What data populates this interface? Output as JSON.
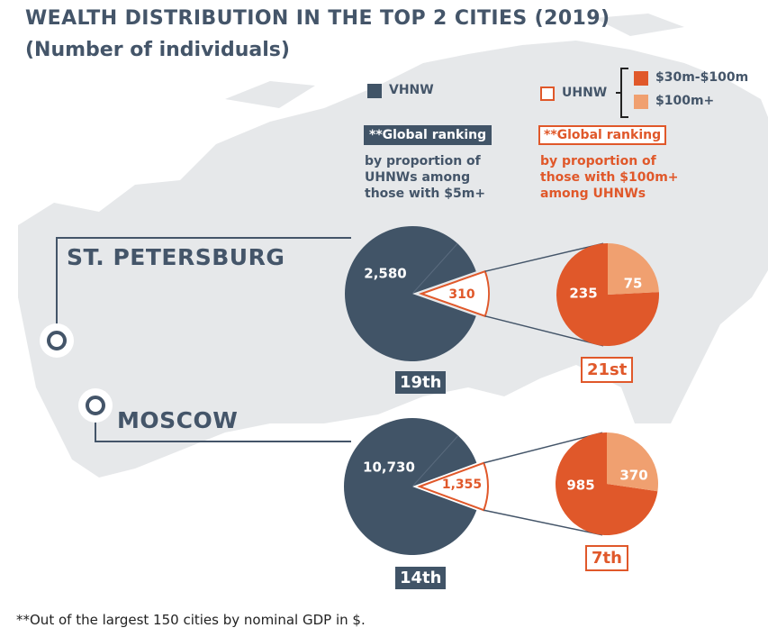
{
  "title": {
    "line1": "WEALTH DISTRIBUTION IN THE TOP 2 CITIES (2019)",
    "line2": "(Number of individuals)"
  },
  "legend": {
    "vhnw_label": "VHNW",
    "uhnw_label": "UHNW",
    "sub_30_100": "$30m-$100m",
    "sub_100plus": "$100m+"
  },
  "notes": {
    "vhnw_badge": "**Global ranking",
    "vhnw_text": [
      "by proportion of",
      "UHNWs among",
      "those with $5m+"
    ],
    "uhnw_badge": "**Global ranking",
    "uhnw_text": [
      "by proportion of",
      "those with $100m+",
      "among UHNWs"
    ]
  },
  "colors": {
    "vhnw": "#415467",
    "uhnw_outline": "#e0582a",
    "sub_30_100": "#e0582a",
    "sub_100plus": "#f0a070",
    "map": "#e4e6e8",
    "text_dark": "#445569"
  },
  "cities": {
    "st_petersburg": {
      "name": "ST. PETERSBURG",
      "rank_vhnw": "19th",
      "rank_uhnw": "21st"
    },
    "moscow": {
      "name": "MOSCOW",
      "rank_vhnw": "14th",
      "rank_uhnw": "7th"
    }
  },
  "chart_data": [
    {
      "type": "pie",
      "title": "ST. PETERSBURG",
      "categories": [
        "VHNW",
        "UHNW"
      ],
      "values": [
        2580,
        310
      ],
      "labels": [
        "2,580",
        "310"
      ]
    },
    {
      "type": "pie",
      "title": "ST. PETERSBURG",
      "categories": [
        "$30m-$100m",
        "$100m+"
      ],
      "values": [
        235,
        75
      ],
      "labels": [
        "235",
        "75"
      ]
    },
    {
      "type": "pie",
      "title": "MOSCOW",
      "categories": [
        "VHNW",
        "UHNW"
      ],
      "values": [
        10730,
        1355
      ],
      "labels": [
        "10,730",
        "1,355"
      ]
    },
    {
      "type": "pie",
      "title": "MOSCOW",
      "categories": [
        "$30m-$100m",
        "$100m+"
      ],
      "values": [
        985,
        370
      ],
      "labels": [
        "985",
        "370"
      ]
    }
  ],
  "footnote": "**Out of the largest 150 cities by nominal GDP in $."
}
